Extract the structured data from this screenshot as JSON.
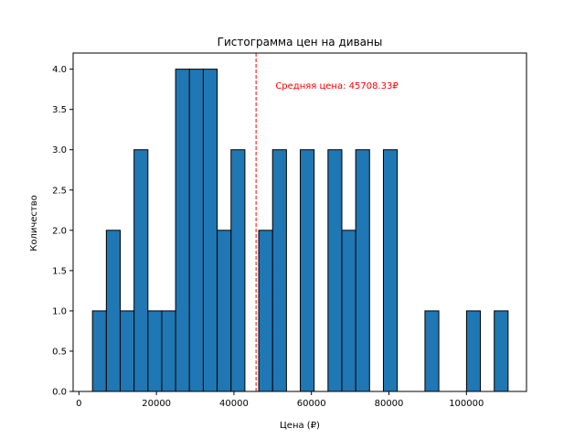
{
  "chart_data": {
    "type": "bar",
    "title": "Гистограмма цен на диваны",
    "xlabel": "Цена (₽)",
    "ylabel": "Количество",
    "xlim": [
      -1500,
      115500
    ],
    "ylim": [
      0,
      4.2
    ],
    "x_ticks": [
      0,
      20000,
      40000,
      60000,
      80000,
      100000
    ],
    "y_ticks": [
      0.0,
      0.5,
      1.0,
      1.5,
      2.0,
      2.5,
      3.0,
      3.5,
      4.0
    ],
    "bin_edges": [
      3500,
      7075,
      10650,
      14225,
      17800,
      21375,
      24950,
      28525,
      32100,
      35675,
      39250,
      42825,
      46400,
      49975,
      53550,
      57125,
      60700,
      64275,
      67850,
      71425,
      75000,
      78575,
      82150,
      85725,
      89300,
      92875,
      96450,
      100025,
      103600,
      107175,
      110750
    ],
    "counts": [
      1,
      2,
      1,
      3,
      1,
      1,
      4,
      4,
      4,
      2,
      3,
      0,
      2,
      3,
      0,
      3,
      0,
      3,
      2,
      3,
      0,
      3,
      0,
      0,
      1,
      0,
      0,
      1,
      0,
      1
    ],
    "bar_color": "#1f77b4",
    "edge_color": "#000000",
    "mean_line": {
      "value": 45708.33,
      "color": "#ff0000",
      "style": "dashed",
      "label": "Средняя цена: 45708.33₽",
      "label_y": 3.8
    }
  }
}
